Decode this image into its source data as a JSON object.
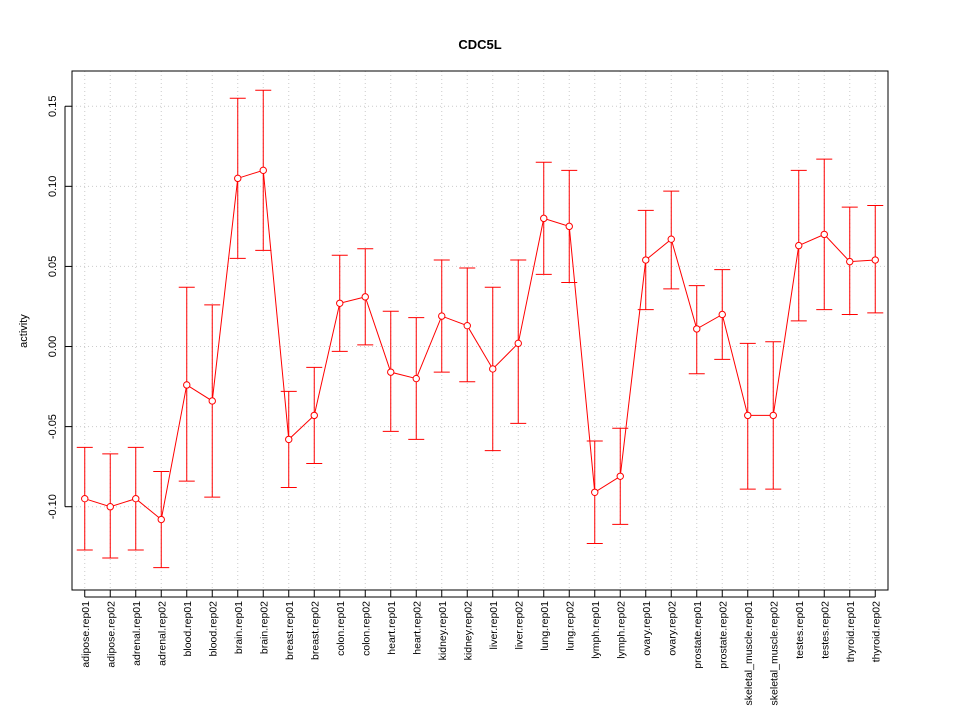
{
  "chart_data": {
    "type": "line",
    "title": "CDC5L",
    "xlabel": "",
    "ylabel": "activity",
    "ylim": [
      -0.152,
      0.172
    ],
    "yticks": [
      -0.1,
      -0.05,
      0.0,
      0.05,
      0.1,
      0.15
    ],
    "ytick_labels": [
      "-0.10",
      "-0.05",
      "0.00",
      "0.05",
      "0.10",
      "0.15"
    ],
    "grid": true,
    "error_bars": true,
    "categories": [
      "adipose.rep01",
      "adipose.rep02",
      "adrenal.rep01",
      "adrenal.rep02",
      "blood.rep01",
      "blood.rep02",
      "brain.rep01",
      "brain.rep02",
      "breast.rep01",
      "breast.rep02",
      "colon.rep01",
      "colon.rep02",
      "heart.rep01",
      "heart.rep02",
      "kidney.rep01",
      "kidney.rep02",
      "liver.rep01",
      "liver.rep02",
      "lung.rep01",
      "lung.rep02",
      "lymph.rep01",
      "lymph.rep02",
      "ovary.rep01",
      "ovary.rep02",
      "prostate.rep01",
      "prostate.rep02",
      "skeletal_muscle.rep01",
      "skeletal_muscle.rep02",
      "testes.rep01",
      "testes.rep02",
      "thyroid.rep01",
      "thyroid.rep02"
    ],
    "series": [
      {
        "values": [
          -0.095,
          -0.1,
          -0.095,
          -0.108,
          -0.024,
          -0.034,
          0.105,
          0.11,
          -0.058,
          -0.043,
          0.027,
          0.031,
          -0.016,
          -0.02,
          0.019,
          0.013,
          -0.014,
          0.002,
          0.08,
          0.075,
          -0.091,
          -0.081,
          0.054,
          0.067,
          0.011,
          0.02,
          -0.043,
          -0.043,
          0.063,
          0.07,
          0.053,
          0.054
        ],
        "lower": [
          -0.127,
          -0.132,
          -0.127,
          -0.138,
          -0.084,
          -0.094,
          0.055,
          0.06,
          -0.088,
          -0.073,
          -0.003,
          0.001,
          -0.053,
          -0.058,
          -0.016,
          -0.022,
          -0.065,
          -0.048,
          0.045,
          0.04,
          -0.123,
          -0.111,
          0.023,
          0.036,
          -0.017,
          -0.008,
          -0.089,
          -0.089,
          0.016,
          0.023,
          0.02,
          0.021
        ],
        "upper": [
          -0.063,
          -0.067,
          -0.063,
          -0.078,
          0.037,
          0.026,
          0.155,
          0.16,
          -0.028,
          -0.013,
          0.057,
          0.061,
          0.022,
          0.018,
          0.054,
          0.049,
          0.037,
          0.054,
          0.115,
          0.11,
          -0.059,
          -0.051,
          0.085,
          0.097,
          0.038,
          0.048,
          0.002,
          0.003,
          0.11,
          0.117,
          0.087,
          0.088
        ]
      }
    ],
    "colors": {
      "series": "#ff0000",
      "grid": "#cccccc",
      "axis": "#000000"
    }
  }
}
